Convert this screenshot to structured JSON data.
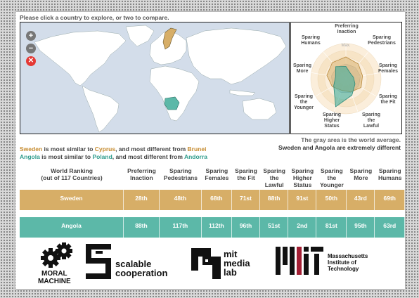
{
  "instruction": "Please click a country to explore, or two to compare.",
  "map": {
    "zoom_in": "+",
    "zoom_out": "−",
    "reset": "✕",
    "colors": {
      "sea": "#d3ddea",
      "land": "#ffffff",
      "sweden": "#d7ae67",
      "angola": "#5cb8a8"
    }
  },
  "radar": {
    "max_label": "Max.",
    "axes": [
      "Preferring Inaction",
      "Sparing Pedestrians",
      "Sparing Females",
      "Sparing the Fit",
      "Sparing the Lawful",
      "Sparing Higher Status",
      "Sparing the Younger",
      "Sparing More",
      "Sparing Humans"
    ],
    "labels": {
      "inaction": [
        "Preferring",
        "Inaction"
      ],
      "pedestrians": [
        "Sparing",
        "Pedestrians"
      ],
      "females": [
        "Sparing",
        "Females"
      ],
      "fit": [
        "Sparing",
        "the Fit"
      ],
      "lawful": [
        "Sparing",
        "the",
        "Lawful"
      ],
      "higher": [
        "Sparing",
        "Higher",
        "Status"
      ],
      "younger": [
        "Sparing",
        "the",
        "Younger"
      ],
      "more": [
        "Sparing",
        "More"
      ],
      "humans": [
        "Sparing",
        "Humans"
      ]
    },
    "sweden_values": [
      0.62,
      0.55,
      0.48,
      0.5,
      0.4,
      0.35,
      0.45,
      0.55,
      0.6
    ],
    "angola_values": [
      0.35,
      0.2,
      0.22,
      0.3,
      0.5,
      0.85,
      0.4,
      0.3,
      0.45
    ],
    "colors": {
      "sweden": "#d7ae67",
      "angola": "#3fae9c"
    }
  },
  "notes": {
    "gray_area": "The gray area is the world average.",
    "similarity": "Sweden and Angola are extremely different"
  },
  "comparisons": [
    {
      "country": "Sweden",
      "text1": " is most similar to ",
      "similar": "Cyprus",
      "text2": ", and most different from ",
      "different": "Brunei"
    },
    {
      "country": "Angola",
      "text1": " is most similar to ",
      "similar": "Poland",
      "text2": ", and most different from ",
      "different": "Andorra"
    }
  ],
  "table": {
    "ranking_title": "World Ranking",
    "ranking_sub": "(out of 117 Countries)",
    "headers": [
      [
        "Preferring",
        "Inaction"
      ],
      [
        "Sparing",
        "Pedestrians"
      ],
      [
        "Sparing",
        "Females"
      ],
      [
        "Sparing",
        "the Fit"
      ],
      [
        "Sparing",
        "the",
        "Lawful"
      ],
      [
        "Sparing",
        "Higher",
        "Status"
      ],
      [
        "Sparing",
        "the",
        "Younger"
      ],
      [
        "Sparing",
        "More"
      ],
      [
        "Sparing",
        "Humans"
      ]
    ],
    "rows": [
      {
        "country": "Sweden",
        "ranks": [
          "28th",
          "48th",
          "68th",
          "71st",
          "88th",
          "91st",
          "50th",
          "43rd",
          "69th"
        ]
      },
      {
        "country": "Angola",
        "ranks": [
          "88th",
          "117th",
          "112th",
          "96th",
          "51st",
          "2nd",
          "81st",
          "95th",
          "63rd"
        ]
      }
    ]
  },
  "logos": {
    "moral_machine": [
      "MORAL",
      "MACHINE"
    ],
    "scalable": [
      "scalable",
      "cooperation"
    ],
    "media_lab": [
      "mit",
      "media",
      "lab"
    ],
    "mit": [
      "Massachusetts",
      "Institute of",
      "Technology"
    ]
  }
}
